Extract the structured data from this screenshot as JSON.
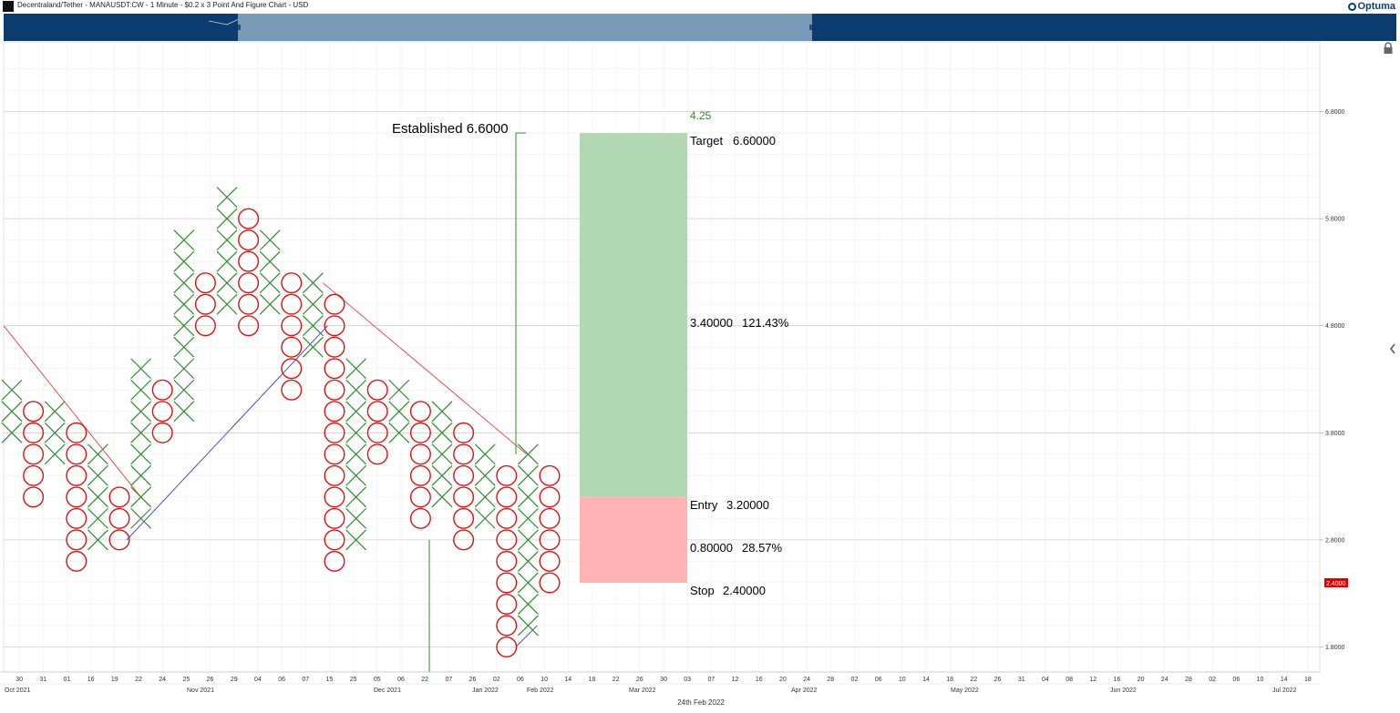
{
  "window": {
    "title": "Decentraland/Tether - MANAUSDT:CW - 1 Minute - $0.2 x 3 Point And Figure Chart - USD",
    "brand": "Optuma"
  },
  "chart_data": {
    "type": "point_and_figure",
    "box_size": 0.2,
    "reversal": 3,
    "y_axis": {
      "ticks": [
        "6.8000",
        "5.8000",
        "4.8000",
        "3.8000",
        "2.8000",
        "1.8000"
      ],
      "range": [
        1.7,
        7.3
      ]
    },
    "last_price_label": "2.4000",
    "columns": [
      {
        "type": "X",
        "from": 3.8,
        "to": 4.2
      },
      {
        "type": "O",
        "from": 3.2,
        "to": 4.0
      },
      {
        "type": "X",
        "from": 3.6,
        "to": 4.0
      },
      {
        "type": "O",
        "from": 2.6,
        "to": 3.8
      },
      {
        "type": "X",
        "from": 2.8,
        "to": 3.6
      },
      {
        "type": "O",
        "from": 2.8,
        "to": 3.2
      },
      {
        "type": "X",
        "from": 3.0,
        "to": 4.4
      },
      {
        "type": "O",
        "from": 3.8,
        "to": 4.2
      },
      {
        "type": "X",
        "from": 4.0,
        "to": 5.6
      },
      {
        "type": "O",
        "from": 4.8,
        "to": 5.2
      },
      {
        "type": "X",
        "from": 5.0,
        "to": 6.0
      },
      {
        "type": "O",
        "from": 4.8,
        "to": 5.8
      },
      {
        "type": "X",
        "from": 5.0,
        "to": 5.6
      },
      {
        "type": "O",
        "from": 4.2,
        "to": 5.2
      },
      {
        "type": "X",
        "from": 4.6,
        "to": 5.2
      },
      {
        "type": "O",
        "from": 2.6,
        "to": 5.0
      },
      {
        "type": "X",
        "from": 2.8,
        "to": 4.4
      },
      {
        "type": "O",
        "from": 3.6,
        "to": 4.2
      },
      {
        "type": "X",
        "from": 3.8,
        "to": 4.2
      },
      {
        "type": "O",
        "from": 3.0,
        "to": 4.0
      },
      {
        "type": "X",
        "from": 3.2,
        "to": 4.0
      },
      {
        "type": "O",
        "from": 2.8,
        "to": 3.8
      },
      {
        "type": "X",
        "from": 3.0,
        "to": 3.6
      },
      {
        "type": "O",
        "from": 1.8,
        "to": 3.4
      },
      {
        "type": "X",
        "from": 2.0,
        "to": 3.6
      },
      {
        "type": "O",
        "from": 2.4,
        "to": 3.4
      }
    ],
    "x_axis": {
      "ticks": [
        "30",
        "31",
        "01",
        "16",
        "19",
        "22",
        "24",
        "25",
        "26",
        "29",
        "04",
        "06",
        "07",
        "15",
        "25",
        "05",
        "06",
        "22",
        "07",
        "26",
        "02",
        "06",
        "10",
        "14",
        "18",
        "22",
        "26",
        "30",
        "03",
        "07",
        "12",
        "16",
        "20",
        "24",
        "28",
        "02",
        "06",
        "10",
        "14",
        "18",
        "22",
        "26",
        "31",
        "04",
        "08",
        "12",
        "16",
        "20",
        "24",
        "28",
        "02",
        "06",
        "10",
        "14",
        "18"
      ],
      "months": [
        "Oct 2021",
        "Nov 2021",
        "Dec 2021",
        "Jan 2022",
        "Feb 2022",
        "Mar 2022",
        "Apr 2022",
        "May 2022",
        "Jun 2022",
        "Jul 2022"
      ],
      "footer_date": "24th Feb 2022"
    },
    "trendlines": [
      {
        "color": "#ee3b3b",
        "kind": "resistance"
      },
      {
        "color": "#ee3b3b",
        "kind": "resistance"
      },
      {
        "color": "#3a3ad6",
        "kind": "support"
      },
      {
        "color": "#3a3ad6",
        "kind": "support"
      }
    ],
    "trade": {
      "established_label": "Established 6.6000",
      "established_value": 6.6,
      "target_count": "4.25",
      "target_label": "Target",
      "target": "6.60000",
      "target_value": 6.6,
      "reward": "3.40000",
      "reward_pct": "121.43%",
      "entry_label": "Entry",
      "entry": "3.20000",
      "entry_value": 3.2,
      "risk": "0.80000",
      "risk_pct": "28.57%",
      "stop_label": "Stop",
      "stop": "2.40000",
      "stop_value": 2.4
    },
    "colors": {
      "x_marks": "#2e8b2e",
      "o_marks": "#e01010",
      "reward_zone": "#b2d8b2",
      "risk_zone": "#ffb3b3",
      "vertical_count": "#2e8b2e",
      "navigator": "#0c3c6e",
      "navigator_window": "#7a9bb8"
    }
  }
}
